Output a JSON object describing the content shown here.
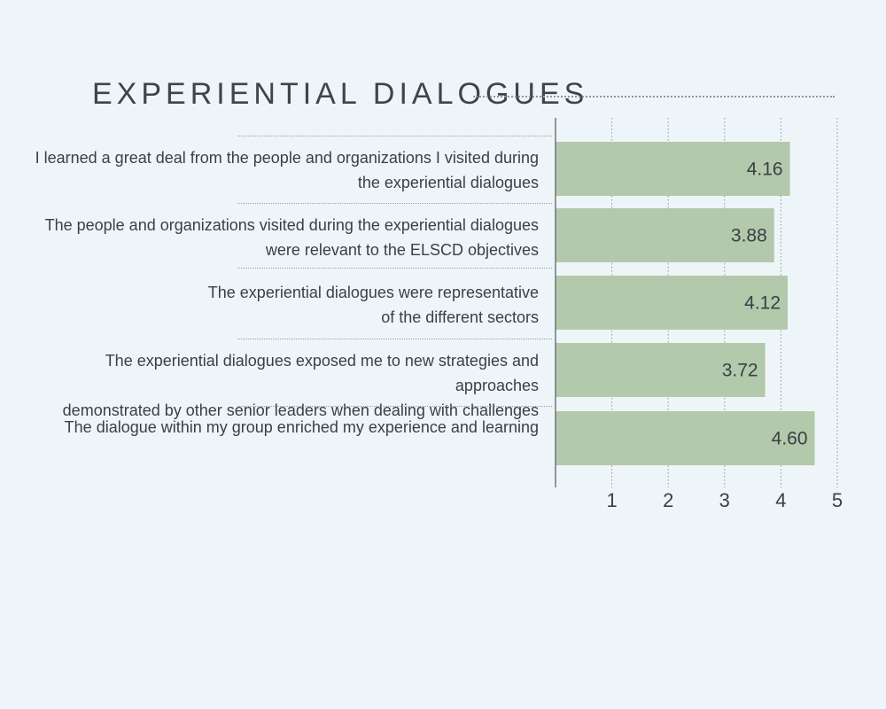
{
  "chart_data": {
    "type": "bar",
    "orientation": "horizontal",
    "title": "EXPERIENTIAL DIALOGUES",
    "categories": [
      "I learned a great deal from the people and organizations I visited during\nthe experiential dialogues",
      "The people and organizations visited during the experiential  dialogues\nwere relevant to the ELSCD objectives",
      "The experiential dialogues were representative\nof the different sectors",
      "The experiential dialogues exposed me to new strategies and approaches\ndemonstrated by other senior leaders when dealing with challenges",
      "The dialogue within my group enriched my experience and learning"
    ],
    "values": [
      4.16,
      3.88,
      4.12,
      3.72,
      4.6
    ],
    "value_labels": [
      "4.16",
      "3.88",
      "4.12",
      "3.72",
      "4.60"
    ],
    "xlim": [
      0,
      5
    ],
    "ticks": [
      1,
      2,
      3,
      4,
      5
    ],
    "tick_labels": [
      "1",
      "2",
      "3",
      "4",
      "5"
    ],
    "grid": "vertical dotted",
    "bar_color": "#b3c9ab",
    "background_color": "#eef5f8",
    "text_color": "#3a3f45"
  }
}
